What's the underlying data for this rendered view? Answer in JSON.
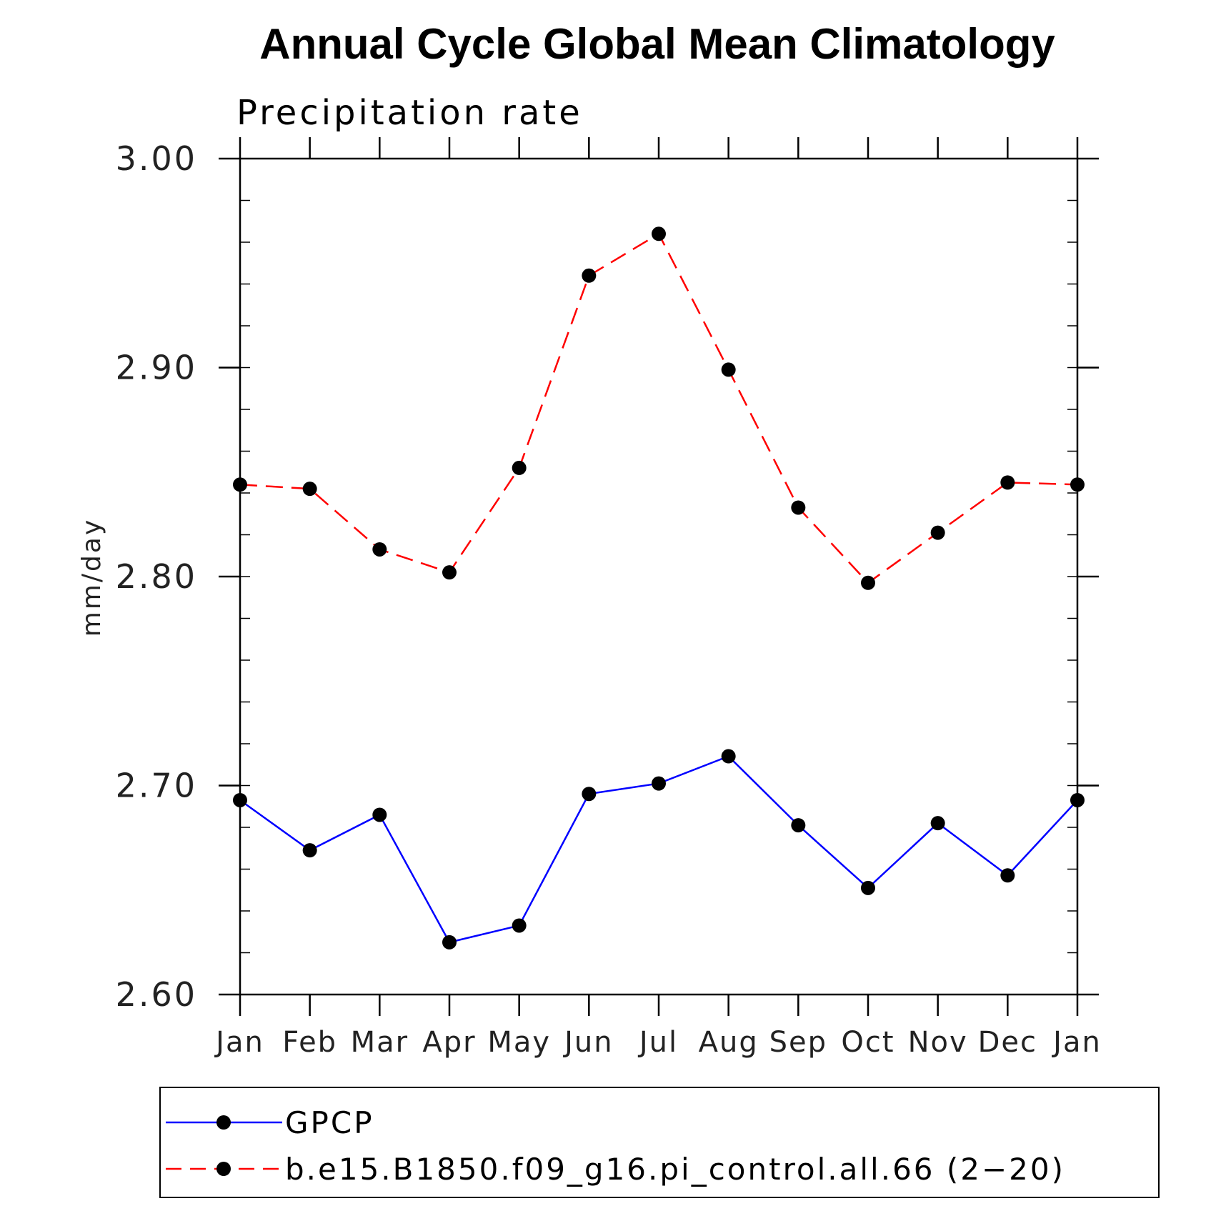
{
  "chart_data": {
    "type": "line",
    "title": "Annual Cycle Global Mean Climatology",
    "subtitle": "Precipitation rate",
    "ylabel": "mm/day",
    "xlabel": "",
    "categories": [
      "Jan",
      "Feb",
      "Mar",
      "Apr",
      "May",
      "Jun",
      "Jul",
      "Aug",
      "Sep",
      "Oct",
      "Nov",
      "Dec",
      "Jan"
    ],
    "ylim": [
      2.6,
      3.0
    ],
    "yticks": [
      {
        "value": 3.0,
        "label": "3.00"
      },
      {
        "value": 2.9,
        "label": "2.90"
      },
      {
        "value": 2.8,
        "label": "2.80"
      },
      {
        "value": 2.7,
        "label": "2.70"
      },
      {
        "value": 2.6,
        "label": "2.60"
      }
    ],
    "minor_tick_step": 0.02,
    "legend_position": "bottom",
    "series": [
      {
        "name": "GPCP",
        "color": "#0000ff",
        "line_style": "solid",
        "marker": "filled-circle",
        "values": [
          2.693,
          2.669,
          2.686,
          2.625,
          2.633,
          2.696,
          2.701,
          2.714,
          2.681,
          2.651,
          2.682,
          2.657,
          2.693
        ]
      },
      {
        "name": "b.e15.B1850.f09_g16.pi_control.all.66 (2−20)",
        "color": "#ff0000",
        "line_style": "dashed",
        "marker": "filled-circle",
        "values": [
          2.844,
          2.842,
          2.813,
          2.802,
          2.852,
          2.944,
          2.964,
          2.899,
          2.833,
          2.797,
          2.821,
          2.845,
          2.844
        ]
      }
    ]
  }
}
